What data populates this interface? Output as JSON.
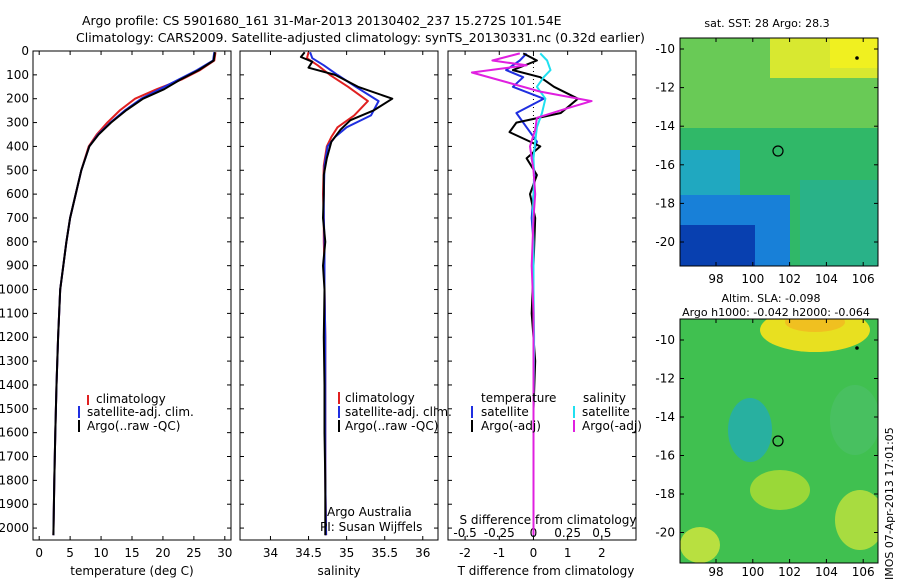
{
  "header": {
    "line1": "Argo profile: CS 5901680_161 31-Mar-2013 20130402_237 15.272S 101.54E",
    "line2": "Climatology: CARS2009. Satellite-adjusted climatology: synTS_20130331.nc (0.32d earlier)"
  },
  "depth_ticks": [
    "0",
    "100",
    "200",
    "300",
    "400",
    "500",
    "600",
    "700",
    "800",
    "900",
    "1000",
    "1100",
    "1200",
    "1300",
    "1400",
    "1500",
    "1600",
    "1700",
    "1800",
    "1900",
    "2000"
  ],
  "colors": {
    "climatology": "#e02020",
    "satellite": "#1f2fe0",
    "argo": "#000000",
    "sal_satellite": "#20e0f0",
    "sal_argo": "#e020e0"
  },
  "legend": {
    "climatology": "climatology",
    "satellite_adj": "satellite-adj. clim.",
    "argo_raw": "Argo(..raw -QC)",
    "temperature": "temperature",
    "salinity": "salinity",
    "satellite": "satellite",
    "argo_adj": "Argo(-adj)"
  },
  "notes": {
    "argo_australia": "Argo Australia",
    "pi": "PI: Susan Wijffels"
  },
  "map_sst": {
    "title": "sat. SST: 28 Argo: 28.3",
    "lat_ticks": [
      "-10",
      "-12",
      "-14",
      "-16",
      "-18",
      "-20"
    ],
    "lon_ticks": [
      "98",
      "100",
      "102",
      "104",
      "106"
    ]
  },
  "map_sla": {
    "title1": "Altim. SLA: -0.098",
    "title2": "Argo h1000: -0.042 h2000: -0.064",
    "lat_ticks": [
      "-10",
      "-12",
      "-14",
      "-16",
      "-18",
      "-20"
    ],
    "lon_ticks": [
      "98",
      "100",
      "102",
      "104",
      "106"
    ]
  },
  "stamp": "IMOS 07-Apr-2013 17:01:05",
  "chart_data": [
    {
      "type": "line",
      "xlabel": "temperature (deg C)",
      "xlim": [
        -1,
        31
      ],
      "ylim": [
        2050,
        0
      ],
      "xticks": [
        "0",
        "5",
        "10",
        "15",
        "20",
        "25",
        "30"
      ],
      "series": [
        {
          "name": "climatology",
          "x": [
            28.5,
            28.3,
            26,
            23,
            19,
            15.5,
            13,
            11,
            9.3,
            8,
            6.8,
            5.9,
            5,
            4.4,
            3.9,
            3.4,
            3.05,
            2.8,
            2.6,
            2.45,
            2.3
          ],
          "y": [
            5,
            40,
            80,
            120,
            160,
            200,
            250,
            300,
            350,
            400,
            500,
            600,
            700,
            800,
            900,
            1000,
            1200,
            1400,
            1600,
            1800,
            2030
          ]
        },
        {
          "name": "satellite-adj. clim.",
          "x": [
            28.3,
            28.1,
            25.5,
            22.5,
            19.5,
            16.5,
            13.8,
            11.5,
            9.5,
            8.1,
            6.8,
            5.9,
            5,
            4.4,
            3.9,
            3.4,
            3.05,
            2.8,
            2.6,
            2.45,
            2.3
          ],
          "y": [
            5,
            40,
            80,
            120,
            160,
            200,
            250,
            300,
            350,
            400,
            500,
            600,
            700,
            800,
            900,
            1000,
            1200,
            1400,
            1600,
            1800,
            2030
          ]
        },
        {
          "name": "Argo(..raw -QC)",
          "x": [
            28.4,
            28.2,
            25.8,
            22.8,
            20.2,
            16.8,
            14,
            11.6,
            9.6,
            8.1,
            6.8,
            5.9,
            5,
            4.4,
            3.9,
            3.4,
            3.05,
            2.8,
            2.6,
            2.45,
            2.3
          ],
          "y": [
            5,
            40,
            80,
            120,
            160,
            200,
            250,
            300,
            350,
            400,
            500,
            600,
            700,
            800,
            900,
            1000,
            1200,
            1400,
            1600,
            1800,
            2030
          ]
        }
      ]
    },
    {
      "type": "line",
      "xlabel": "salinity",
      "xlim": [
        33.6,
        36.2
      ],
      "ylim": [
        2050,
        0
      ],
      "xticks": [
        "34",
        "34.5",
        "35",
        "35.5",
        "36"
      ],
      "series": [
        {
          "name": "climatology",
          "x": [
            34.5,
            34.48,
            34.62,
            34.78,
            35.02,
            35.28,
            35.1,
            34.88,
            34.8,
            34.74,
            34.7,
            34.69,
            34.7,
            34.7,
            34.71,
            34.71,
            34.72,
            34.72,
            34.72,
            34.72,
            34.73
          ],
          "y": [
            5,
            30,
            60,
            100,
            150,
            210,
            270,
            320,
            360,
            400,
            480,
            600,
            700,
            800,
            900,
            1000,
            1200,
            1400,
            1600,
            1800,
            2030
          ]
        },
        {
          "name": "satellite-adj. clim.",
          "x": [
            34.52,
            34.55,
            34.7,
            34.88,
            35.12,
            35.42,
            35.32,
            35.0,
            34.85,
            34.75,
            34.71,
            34.7,
            34.7,
            34.71,
            34.71,
            34.71,
            34.72,
            34.72,
            34.72,
            34.72,
            34.73
          ],
          "y": [
            5,
            30,
            60,
            100,
            150,
            210,
            270,
            320,
            360,
            400,
            480,
            600,
            700,
            800,
            900,
            1000,
            1200,
            1400,
            1600,
            1800,
            2030
          ]
        },
        {
          "name": "Argo(..raw -QC)",
          "x": [
            34.45,
            34.4,
            34.55,
            34.5,
            34.85,
            35.15,
            35.6,
            35.35,
            35.05,
            34.92,
            34.8,
            34.74,
            34.7,
            34.7,
            34.69,
            34.72,
            34.69,
            34.71,
            34.7,
            34.71,
            34.71,
            34.72,
            34.72
          ],
          "y": [
            5,
            25,
            45,
            70,
            100,
            150,
            200,
            250,
            290,
            330,
            380,
            450,
            520,
            600,
            700,
            800,
            900,
            1000,
            1200,
            1400,
            1600,
            1800,
            2030
          ]
        }
      ]
    },
    {
      "type": "line",
      "xlabel": "T difference from climatology",
      "x2label": "S difference from climatology",
      "xlim": [
        -2.5,
        3
      ],
      "x2lim": [
        -0.625,
        0.75
      ],
      "ylim": [
        2050,
        0
      ],
      "xticks": [
        "-2",
        "-1",
        "0",
        "1",
        "2"
      ],
      "x2ticks": [
        "-0.5",
        "-0.25",
        "0",
        "0.25",
        "0.5"
      ],
      "series": [
        {
          "name": "temperature satellite",
          "x": [
            -0.2,
            -0.4,
            -0.8,
            -0.3,
            -0.6,
            0.3,
            -0.5,
            -0.2,
            0.1,
            -0.05,
            0.05,
            0,
            -0.05,
            0,
            0,
            0,
            0,
            0,
            0,
            0
          ],
          "y": [
            10,
            40,
            80,
            110,
            150,
            200,
            260,
            320,
            380,
            450,
            520,
            600,
            700,
            800,
            1000,
            1200,
            1400,
            1600,
            1800,
            2030
          ]
        },
        {
          "name": "temperature Argo(-adj)",
          "x": [
            -0.3,
            0.1,
            -0.6,
            0.2,
            0.6,
            1.3,
            0.8,
            -0.5,
            -0.7,
            0.2,
            -0.2,
            0.1,
            -0.1,
            0.05,
            0,
            -0.05,
            0.05,
            0,
            0,
            0
          ],
          "y": [
            10,
            40,
            80,
            110,
            150,
            200,
            260,
            300,
            340,
            400,
            450,
            520,
            600,
            700,
            900,
            1100,
            1300,
            1500,
            1800,
            2030
          ]
        },
        {
          "name": "salinity satellite",
          "x": [
            0.2,
            0.4,
            0.5,
            0.3,
            0.1,
            0.35,
            0.25,
            0.1,
            0.05,
            0,
            0.02,
            0,
            -0.02,
            0,
            0,
            0.02,
            0,
            0
          ],
          "y": [
            10,
            40,
            80,
            110,
            150,
            200,
            260,
            320,
            380,
            450,
            520,
            600,
            700,
            800,
            1000,
            1200,
            1500,
            2030
          ]
        },
        {
          "name": "salinity Argo(-adj)",
          "x": [
            -0.4,
            -1.2,
            -0.2,
            -1.8,
            -0.8,
            0.2,
            1.7,
            1.0,
            0.1,
            0.05,
            -0.1,
            0,
            0.05,
            0,
            -0.05,
            0,
            0,
            0
          ],
          "y": [
            10,
            40,
            60,
            90,
            130,
            170,
            210,
            240,
            280,
            330,
            400,
            500,
            600,
            700,
            900,
            1100,
            1400,
            2030
          ]
        }
      ]
    }
  ]
}
